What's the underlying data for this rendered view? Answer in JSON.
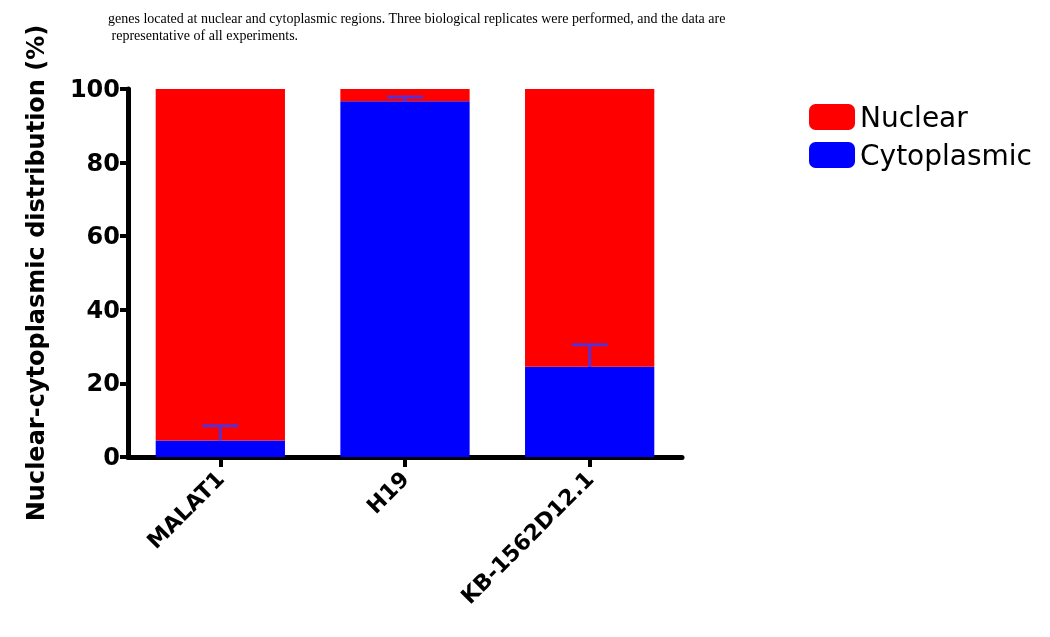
{
  "chart_data": {
    "type": "bar",
    "stacked": true,
    "ylabel": "Nuclear-cytoplasmic distribution (%)",
    "categories": [
      "MALAT1",
      "H19",
      "KB-1562D12.1"
    ],
    "series": [
      {
        "name": "Cytoplasmic",
        "color": "#0000ff",
        "values": [
          4.5,
          96.7,
          24.5
        ],
        "errors": [
          [
            4.5,
            8.5
          ],
          [
            96.7,
            97.8
          ],
          [
            24.5,
            30.5
          ]
        ]
      },
      {
        "name": "Nuclear",
        "color": "#ff0000",
        "values": [
          95.5,
          3.3,
          75.5
        ]
      }
    ],
    "ylim": [
      0,
      100
    ],
    "yticks": [
      0,
      20,
      40,
      60,
      80,
      100
    ],
    "grid": false,
    "legend": "top right",
    "annotations": [
      "genes located at nuclear and cytoplasmic regions. Three biological replicates were performed, and the data are representative of all experiments."
    ]
  }
}
